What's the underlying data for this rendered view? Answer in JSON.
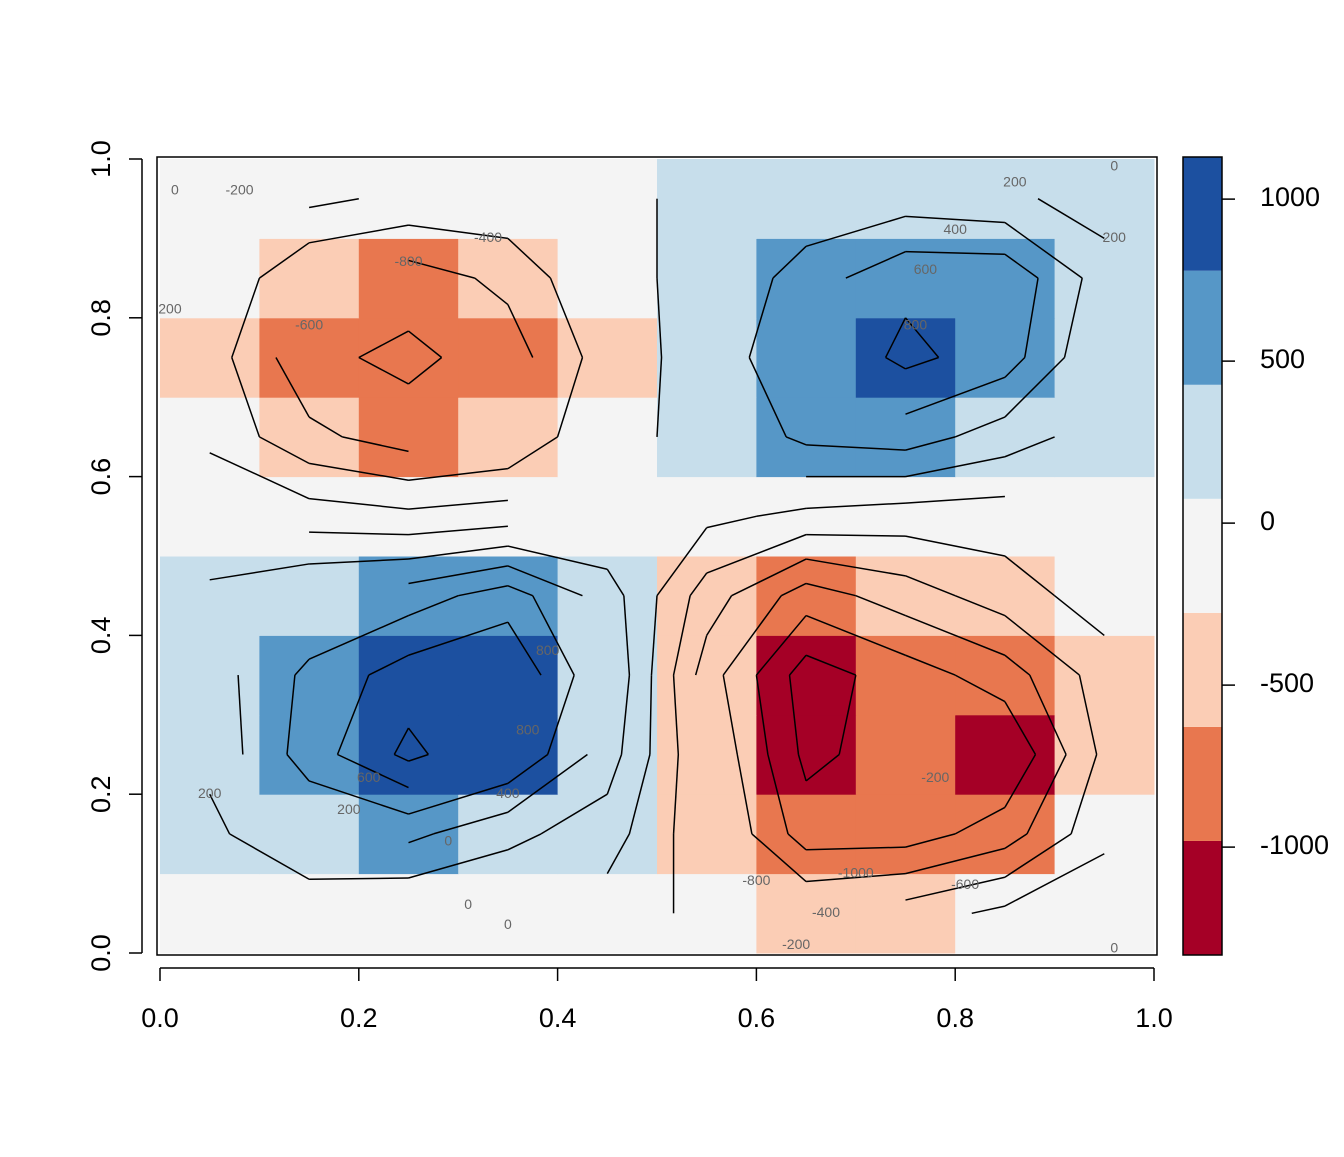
{
  "chart_data": {
    "type": "heatmap",
    "x": [
      0.05,
      0.15,
      0.25,
      0.35,
      0.45,
      0.55,
      0.65,
      0.75,
      0.85,
      0.95
    ],
    "y": [
      0.05,
      0.15,
      0.25,
      0.35,
      0.45,
      0.55,
      0.65,
      0.75,
      0.85,
      0.95
    ],
    "z": [
      [
        20,
        50,
        0,
        0,
        -100,
        -250,
        -400,
        -300,
        -150,
        -50
      ],
      [
        150,
        400,
        450,
        250,
        100,
        -350,
        -900,
        -900,
        -700,
        -250
      ],
      [
        250,
        700,
        1050,
        800,
        300,
        -400,
        -1050,
        -900,
        -1000,
        -350
      ],
      [
        300,
        650,
        900,
        1000,
        400,
        -500,
        -1100,
        -900,
        -700,
        -300
      ],
      [
        250,
        400,
        500,
        700,
        300,
        -300,
        -700,
        -500,
        -300,
        -100
      ],
      [
        0,
        -100,
        -150,
        -100,
        0,
        50,
        -50,
        -100,
        -100,
        0
      ],
      [
        -250,
        -550,
        -700,
        -600,
        -200,
        200,
        450,
        500,
        300,
        100
      ],
      [
        -300,
        -750,
        -850,
        -700,
        -300,
        250,
        600,
        850,
        700,
        200
      ],
      [
        -200,
        -600,
        -700,
        -550,
        -200,
        200,
        500,
        750,
        750,
        300
      ],
      [
        -50,
        -150,
        -250,
        -250,
        -100,
        100,
        250,
        300,
        250,
        100
      ]
    ],
    "xlim": [
      0,
      1
    ],
    "ylim": [
      0,
      1
    ],
    "xticks": [
      {
        "value": 0,
        "label": "0.0"
      },
      {
        "value": 0.2,
        "label": "0.2"
      },
      {
        "value": 0.4,
        "label": "0.4"
      },
      {
        "value": 0.6,
        "label": "0.6"
      },
      {
        "value": 0.8,
        "label": "0.8"
      },
      {
        "value": 1,
        "label": "1.0"
      }
    ],
    "yticks": [
      {
        "value": 0,
        "label": "0.0"
      },
      {
        "value": 0.2,
        "label": "0.2"
      },
      {
        "value": 0.4,
        "label": "0.4"
      },
      {
        "value": 0.6,
        "label": "0.6"
      },
      {
        "value": 0.8,
        "label": "0.8"
      },
      {
        "value": 1,
        "label": "1.0"
      }
    ],
    "color_breaks": [
      -1333,
      -981,
      -629,
      -277,
      75,
      427,
      779,
      1130
    ],
    "colors": [
      "#a50026",
      "#e8774f",
      "#fbcdb5",
      "#f4f4f4",
      "#c7deeb",
      "#5697c7",
      "#1c50a0"
    ],
    "colorbar_ticks": [
      -1000,
      -500,
      0,
      500,
      1000
    ],
    "contour_levels": [
      -1000,
      -800,
      -600,
      -400,
      -200,
      0,
      200,
      400,
      600,
      800,
      1000
    ],
    "contour_labels": [
      {
        "value": 0,
        "x": 0.015,
        "y": 0.96
      },
      {
        "value": -200,
        "x": 0.08,
        "y": 0.96
      },
      {
        "value": -400,
        "x": 0.33,
        "y": 0.9
      },
      {
        "value": -800,
        "x": 0.25,
        "y": 0.87
      },
      {
        "value": -600,
        "x": 0.15,
        "y": 0.79
      },
      {
        "value": 200,
        "x": 0.01,
        "y": 0.81
      },
      {
        "value": 200,
        "x": 0.86,
        "y": 0.97
      },
      {
        "value": 0,
        "x": 0.96,
        "y": 0.99
      },
      {
        "value": 400,
        "x": 0.8,
        "y": 0.91
      },
      {
        "value": 600,
        "x": 0.77,
        "y": 0.86
      },
      {
        "value": 800,
        "x": 0.76,
        "y": 0.79
      },
      {
        "value": 200,
        "x": 0.96,
        "y": 0.9
      },
      {
        "value": 800,
        "x": 0.39,
        "y": 0.38
      },
      {
        "value": 800,
        "x": 0.37,
        "y": 0.28
      },
      {
        "value": 600,
        "x": 0.21,
        "y": 0.22
      },
      {
        "value": 400,
        "x": 0.35,
        "y": 0.2
      },
      {
        "value": 200,
        "x": 0.19,
        "y": 0.18
      },
      {
        "value": 0,
        "x": 0.29,
        "y": 0.14
      },
      {
        "value": 200,
        "x": 0.05,
        "y": 0.2
      },
      {
        "value": 0,
        "x": 0.35,
        "y": 0.035
      },
      {
        "value": 0,
        "x": 0.31,
        "y": 0.06
      },
      {
        "value": -1000,
        "x": 0.7,
        "y": 0.1
      },
      {
        "value": -800,
        "x": 0.6,
        "y": 0.09
      },
      {
        "value": -600,
        "x": 0.81,
        "y": 0.085
      },
      {
        "value": -400,
        "x": 0.67,
        "y": 0.05
      },
      {
        "value": -200,
        "x": 0.64,
        "y": 0.01
      },
      {
        "value": 0,
        "x": 0.96,
        "y": 0.005
      },
      {
        "value": -200,
        "x": 0.78,
        "y": 0.22
      }
    ]
  }
}
